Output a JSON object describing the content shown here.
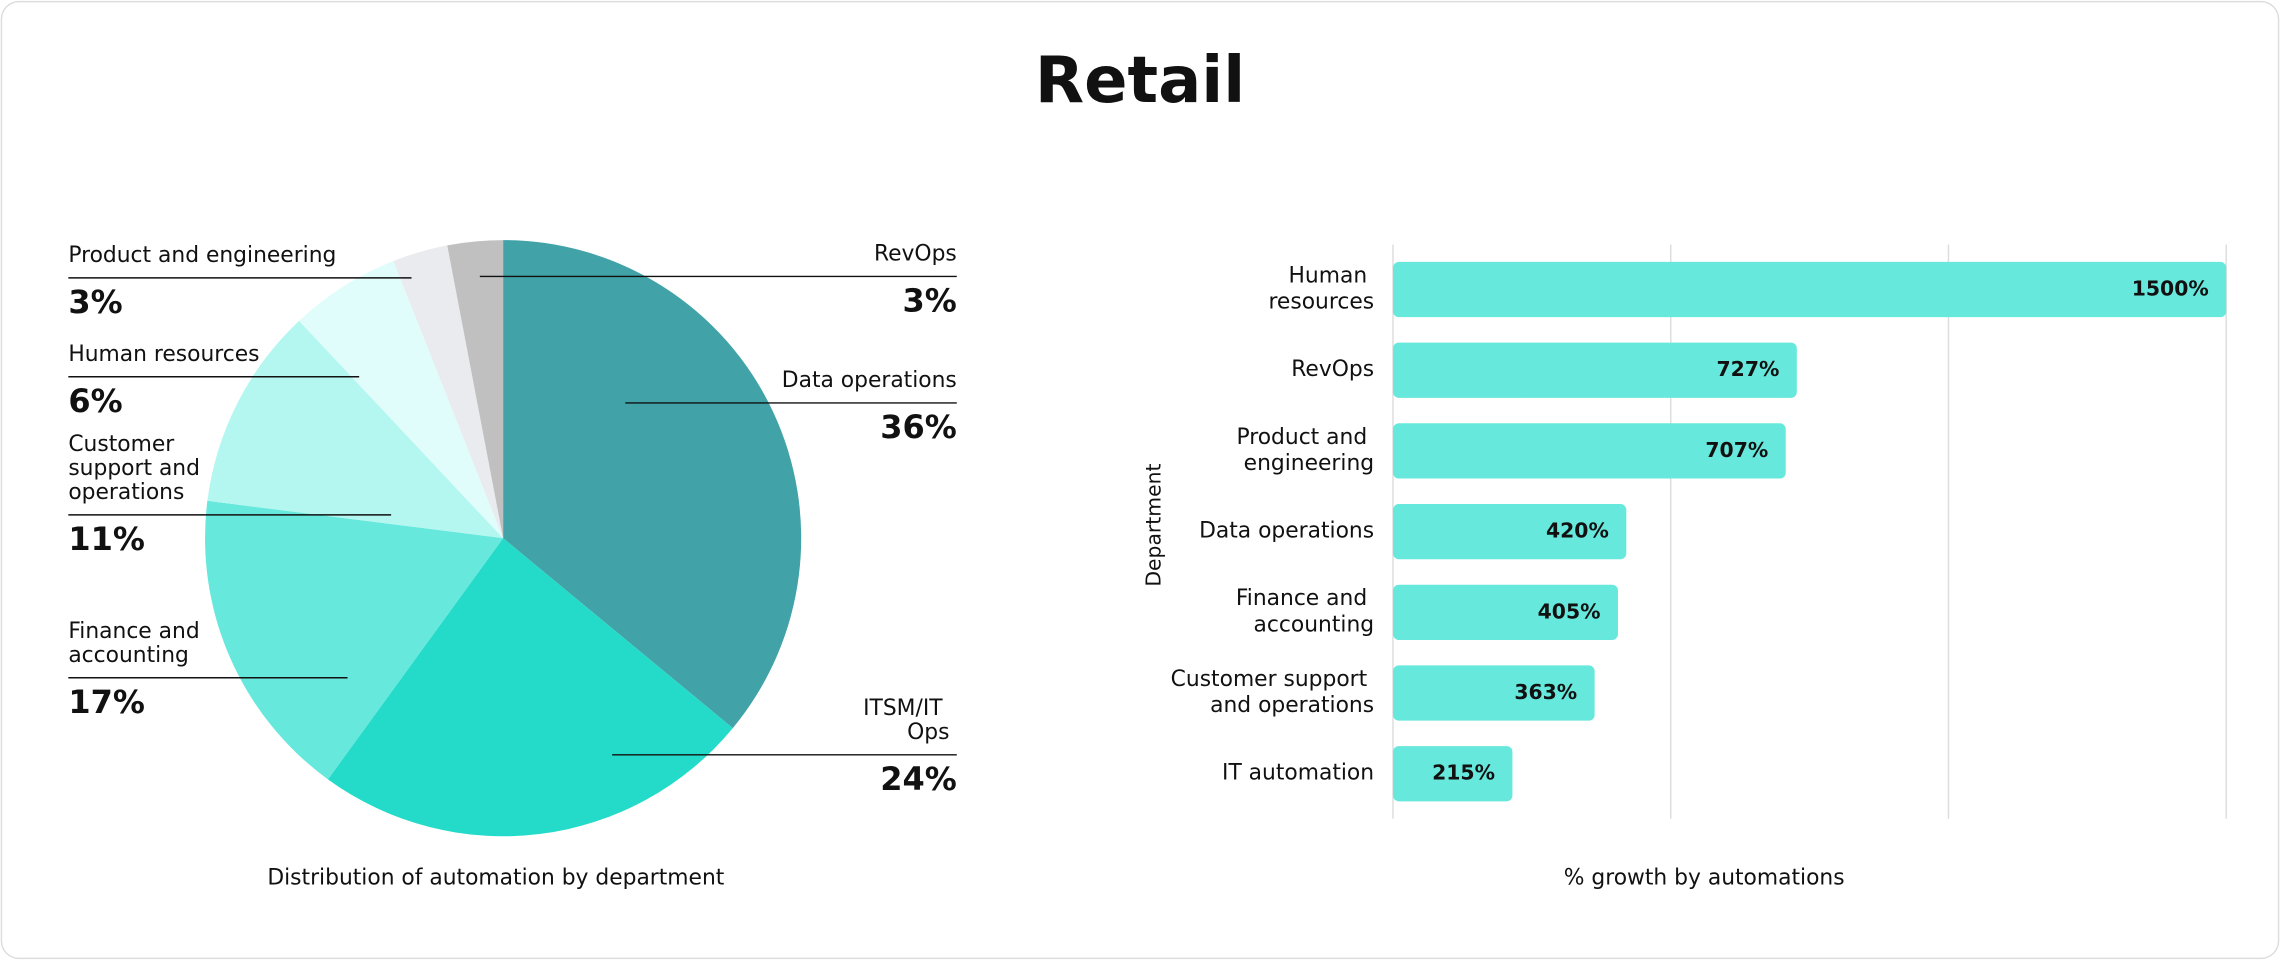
{
  "title": "Retail",
  "chart_data": [
    {
      "type": "pie",
      "title": "Distribution of automation by department",
      "categories": [
        "Data operations",
        "ITSM/IT Ops",
        "Finance and accounting",
        "Customer support and operations",
        "Human resources",
        "Product and engineering",
        "RevOps"
      ],
      "values": [
        36,
        24,
        17,
        11,
        6,
        3,
        3
      ],
      "value_labels": [
        "36%",
        "24%",
        "17%",
        "11%",
        "6%",
        "3%",
        "3%"
      ],
      "colors": [
        "#41a2a8",
        "#24dbc9",
        "#67e8dc",
        "#b3f7f0",
        "#e0fdfb",
        "#eaebee",
        "#c0c0c0"
      ]
    },
    {
      "type": "barh",
      "xlabel": "% growth by automations",
      "ylabel": "Department",
      "categories": [
        "Human resources",
        "RevOps",
        "Product and engineering",
        "Data operations",
        "Finance and accounting",
        "Customer support and operations",
        "IT automation"
      ],
      "values": [
        1500,
        727,
        707,
        420,
        405,
        363,
        215
      ],
      "value_labels": [
        "1500%",
        "727%",
        "707%",
        "420%",
        "405%",
        "363%",
        "215%"
      ],
      "color": "#67e8dc",
      "xlim": [
        0,
        1500
      ],
      "xticks": [
        0,
        500,
        1000,
        1500
      ],
      "grid": true
    }
  ]
}
